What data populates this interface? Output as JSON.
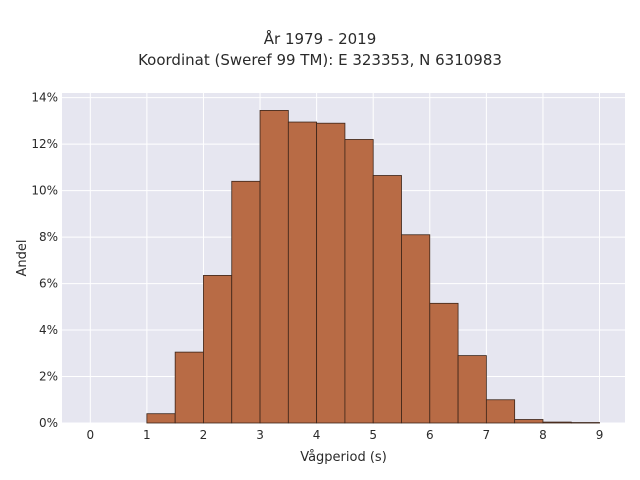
{
  "chart_data": {
    "type": "bar",
    "title": "År 1979 - 2019",
    "subtitle": "Koordinat (Sweref 99 TM): E 323353, N 6310983",
    "xlabel": "Vågperiod (s)",
    "ylabel": "Andel",
    "bin_width": 0.5,
    "bins_start": [
      1.0,
      1.5,
      2.0,
      2.5,
      3.0,
      3.5,
      4.0,
      4.5,
      5.0,
      5.5,
      6.0,
      6.5,
      7.0,
      7.5,
      8.0,
      8.5
    ],
    "values": [
      0.4,
      3.05,
      6.35,
      10.4,
      13.45,
      12.95,
      12.9,
      12.2,
      10.65,
      8.1,
      5.15,
      2.9,
      1.0,
      0.15,
      0.04,
      0.02
    ],
    "xlim": [
      -0.5,
      9.45
    ],
    "ylim": [
      0,
      14.2
    ],
    "x_ticks": [
      "0",
      "1",
      "2",
      "3",
      "4",
      "5",
      "6",
      "7",
      "8",
      "9"
    ],
    "y_ticks": [
      "0%",
      "2%",
      "4%",
      "6%",
      "8%",
      "10%",
      "12%",
      "14%"
    ],
    "grid": true,
    "bar_color": "#b86b45",
    "bar_edge_color": "#3b2418",
    "background": "#e6e6f0"
  }
}
